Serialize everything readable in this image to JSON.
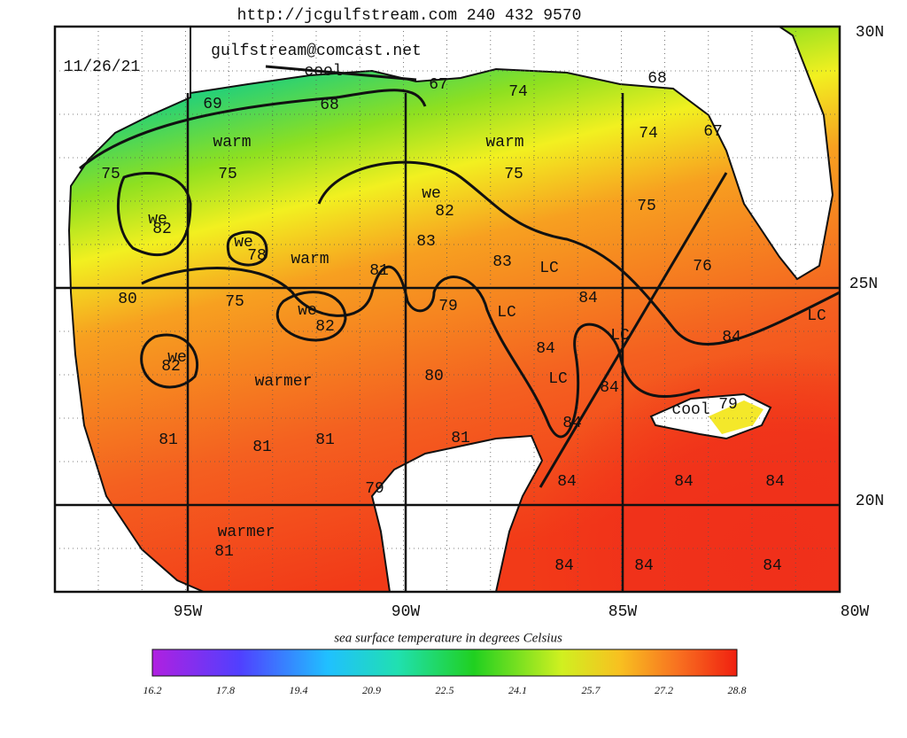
{
  "header": {
    "url_line": "http://jcgulfstream.com 240 432 9570",
    "email": "gulfstream@comcast.net"
  },
  "map": {
    "date": "11/26/21",
    "lat_labels": [
      "30N",
      "25N",
      "20N"
    ],
    "lon_labels": [
      "95W",
      "90W",
      "85W",
      "80W"
    ],
    "annotations": [
      "cool",
      "69",
      "68",
      "67",
      "74",
      "68",
      "74",
      "67",
      "warm",
      "warm",
      "75",
      "75",
      "75",
      "we",
      "82",
      "75",
      "we",
      "82",
      "we",
      "78",
      "warm",
      "83",
      "83",
      "LC",
      "76",
      "81",
      "80",
      "75",
      "79",
      "LC",
      "84",
      "we",
      "82",
      "LC",
      "84",
      "LC",
      "we",
      "82",
      "84",
      "warmer",
      "80",
      "LC",
      "84",
      "cool",
      "79",
      "84",
      "81",
      "81",
      "81",
      "81",
      "79",
      "84",
      "84",
      "84",
      "warmer",
      "81",
      "84",
      "84",
      "84"
    ]
  },
  "colorbar": {
    "title": "sea surface temperature in degrees Celsius",
    "labels": [
      "16.2",
      "17.8",
      "19.4",
      "20.9",
      "22.5",
      "24.1",
      "25.7",
      "27.2",
      "28.8"
    ]
  }
}
